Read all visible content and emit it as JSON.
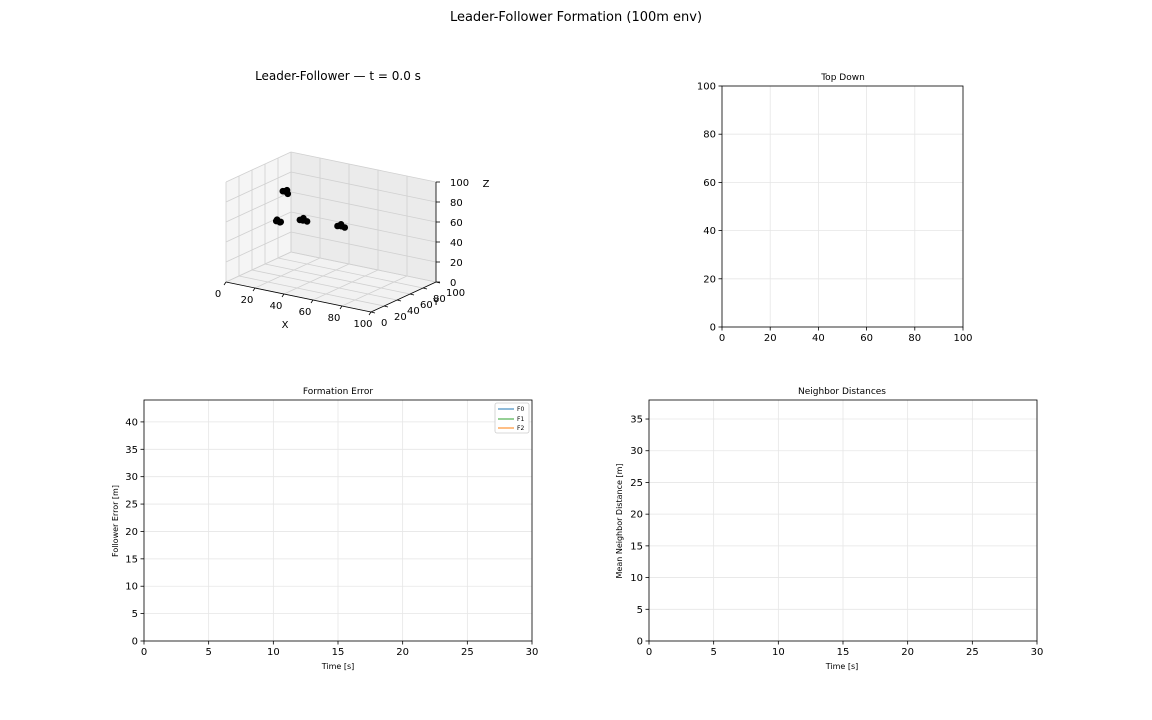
{
  "figure": {
    "title": "Leader-Follower Formation (100m env)"
  },
  "chart_data": [
    {
      "id": "panel3d",
      "type": "scatter",
      "title": "Leader-Follower — t = 0.0 s",
      "xlabel": "X",
      "ylabel": "Y",
      "zlabel": "Z",
      "xlim": [
        0,
        100
      ],
      "ylim": [
        0,
        100
      ],
      "zlim": [
        0,
        100
      ],
      "xticks": [
        0,
        20,
        40,
        60,
        80,
        100
      ],
      "yticks": [
        0,
        20,
        40,
        60,
        80,
        100
      ],
      "zticks": [
        0,
        20,
        40,
        60,
        80,
        100
      ],
      "grid": true,
      "point_color": "#000000",
      "points": [
        {
          "x": 19,
          "y": 48,
          "z": 82
        },
        {
          "x": 21,
          "y": 47,
          "z": 84
        },
        {
          "x": 19,
          "y": 45,
          "z": 83
        },
        {
          "x": 22,
          "y": 46,
          "z": 81
        },
        {
          "x": 23,
          "y": 26,
          "z": 60
        },
        {
          "x": 24,
          "y": 25,
          "z": 62
        },
        {
          "x": 26,
          "y": 25,
          "z": 60
        },
        {
          "x": 27,
          "y": 24,
          "z": 61
        },
        {
          "x": 33,
          "y": 40,
          "z": 60
        },
        {
          "x": 35,
          "y": 41,
          "z": 62
        },
        {
          "x": 36,
          "y": 38,
          "z": 61
        },
        {
          "x": 38,
          "y": 40,
          "z": 60
        },
        {
          "x": 50,
          "y": 60,
          "z": 53
        },
        {
          "x": 52,
          "y": 61,
          "z": 55
        },
        {
          "x": 53,
          "y": 59,
          "z": 54
        },
        {
          "x": 55,
          "y": 60,
          "z": 53
        }
      ]
    },
    {
      "id": "topdown",
      "type": "scatter",
      "title": "Top Down",
      "xlabel": "",
      "ylabel": "",
      "xlim": [
        0,
        100
      ],
      "ylim": [
        0,
        100
      ],
      "xticks": [
        0,
        20,
        40,
        60,
        80,
        100
      ],
      "yticks": [
        0,
        20,
        40,
        60,
        80,
        100
      ],
      "grid": true,
      "points": []
    },
    {
      "id": "formation_error",
      "type": "line",
      "title": "Formation Error",
      "xlabel": "Time [s]",
      "ylabel": "Follower Error [m]",
      "xlim": [
        0,
        30
      ],
      "ylim": [
        0,
        44
      ],
      "xticks": [
        0,
        5,
        10,
        15,
        20,
        25,
        30
      ],
      "yticks": [
        0,
        5,
        10,
        15,
        20,
        25,
        30,
        35,
        40
      ],
      "grid": true,
      "legend": "top-right",
      "series": [
        {
          "name": "F0",
          "color": "#1f77b4",
          "x": [],
          "y": []
        },
        {
          "name": "F1",
          "color": "#2ca02c",
          "x": [],
          "y": []
        },
        {
          "name": "F2",
          "color": "#ff7f0e",
          "x": [],
          "y": []
        }
      ]
    },
    {
      "id": "neighbor_distances",
      "type": "line",
      "title": "Neighbor Distances",
      "xlabel": "Time [s]",
      "ylabel": "Mean Neighbor Distance [m]",
      "xlim": [
        0,
        30
      ],
      "ylim": [
        0,
        38
      ],
      "xticks": [
        0,
        5,
        10,
        15,
        20,
        25,
        30
      ],
      "yticks": [
        0,
        5,
        10,
        15,
        20,
        25,
        30,
        35
      ],
      "grid": true,
      "series": []
    }
  ]
}
